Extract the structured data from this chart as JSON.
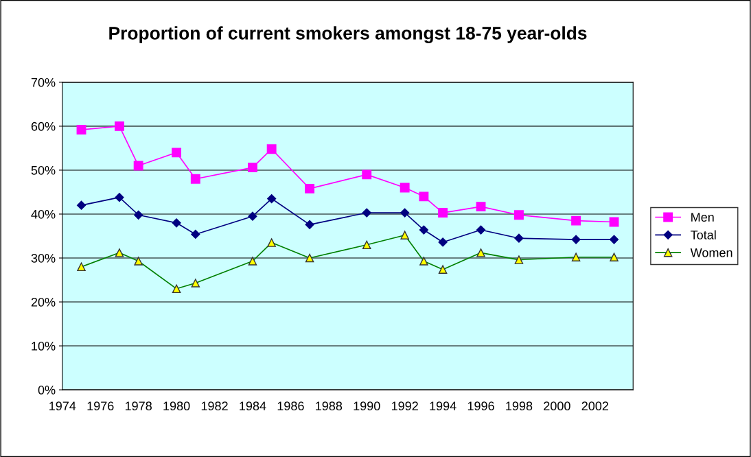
{
  "chart_data": {
    "type": "line",
    "title": "Proportion of current smokers amongst 18-75 year-olds",
    "x": [
      1975,
      1977,
      1978,
      1980,
      1981,
      1984,
      1985,
      1987,
      1990,
      1992,
      1993,
      1994,
      1996,
      1998,
      2001,
      2003
    ],
    "series": [
      {
        "name": "Men",
        "color": "#ff00ff",
        "marker": "square",
        "values": [
          59.2,
          60,
          51,
          54,
          48,
          50.6,
          54.8,
          45.8,
          49,
          46,
          44,
          40.3,
          41.7,
          39.8,
          38.5,
          38.2
        ]
      },
      {
        "name": "Total",
        "color": "#000080",
        "marker": "diamond",
        "values": [
          42,
          43.8,
          39.8,
          38,
          35.4,
          39.5,
          43.5,
          37.6,
          40.3,
          40.3,
          36.4,
          33.6,
          36.4,
          34.5,
          34.2,
          34.2
        ]
      },
      {
        "name": "Women",
        "color": "#008000",
        "marker": "triangle",
        "values": [
          28,
          31.2,
          29.3,
          23,
          24.3,
          29.3,
          33.5,
          30,
          33,
          35.2,
          29.3,
          27.4,
          31.2,
          29.6,
          30.2,
          30.2
        ]
      }
    ],
    "xlim": [
      1974,
      2004
    ],
    "xticks": [
      1974,
      1976,
      1978,
      1980,
      1982,
      1984,
      1986,
      1988,
      1990,
      1992,
      1994,
      1996,
      1998,
      2000,
      2002
    ],
    "ylim": [
      0,
      70
    ],
    "yticks": [
      {
        "value": 0,
        "label": "0%"
      },
      {
        "value": 10,
        "label": "10%"
      },
      {
        "value": 20,
        "label": "20%"
      },
      {
        "value": 30,
        "label": "30%"
      },
      {
        "value": 40,
        "label": "40%"
      },
      {
        "value": 50,
        "label": "50%"
      },
      {
        "value": 60,
        "label": "60%"
      },
      {
        "value": 70,
        "label": "70%"
      }
    ],
    "grid": "y",
    "legend": "right",
    "line_style": "solid"
  }
}
